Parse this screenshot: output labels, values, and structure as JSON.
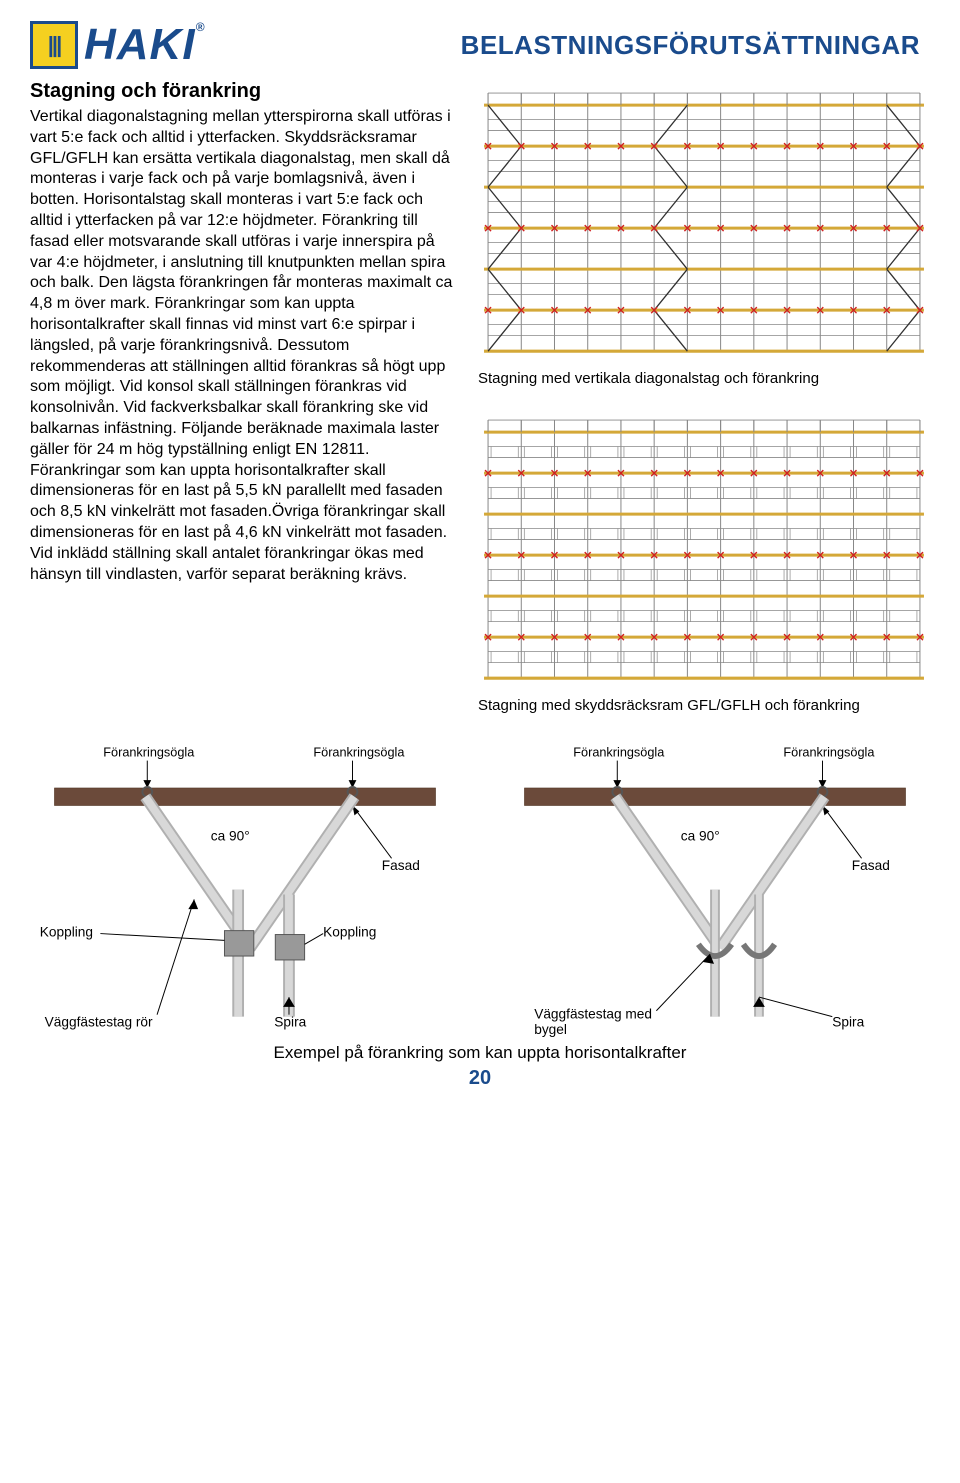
{
  "logo": {
    "brand": "HAKI",
    "mark": "|||"
  },
  "page_title": "BELASTNINGSFÖRUTSÄTTNINGAR",
  "section_heading": "Stagning och förankring",
  "body_paragraph": "Vertikal diagonalstagning mellan ytterspirorna skall utföras i vart 5:e fack och alltid i ytterfacken. Skyddsräcksramar GFL/GFLH kan ersätta vertikala diagonalstag, men skall då monteras i varje fack och på varje bomlagsnivå, även i botten. Horisontalstag skall monteras i vart 5:e fack och alltid i ytterfacken på var 12:e höjdmeter. Förankring till fasad eller motsvarande skall utföras i varje innerspira på var 4:e höjdmeter, i anslutning till knutpunkten mellan spira och balk. Den lägsta förankringen får monteras maximalt ca 4,8 m över mark. Förankringar som kan uppta horisontalkrafter skall finnas vid minst vart 6:e spirpar i längsled, på varje förankringsnivå. Dessutom rekommenderas att ställningen alltid förankras så högt upp som möjligt. Vid konsol skall ställningen förankras vid konsolnivån. Vid fackverksbalkar skall förankring ske vid balkarnas infästning. Följande beräknade maximala laster gäller för 24 m hög typställning enligt EN 12811. Förankringar som kan uppta horisontalkrafter skall dimensioneras för en last på 5,5 kN parallellt med fasaden och 8,5 kN vinkelrätt mot fasaden.Övriga förankringar skall dimensioneras för en last på 4,6 kN vinkelrätt mot fasaden. Vid inklädd ställning skall antalet förankringar ökas med hänsyn till vindlasten, varför separat beräkning krävs.",
  "diagram1": {
    "caption": "Stagning med vertikala diagonalstag och förankring",
    "rows": 6,
    "cols": 13,
    "color_grid": "#888888",
    "color_beam": "#d4a838",
    "color_anchor": "#d02020",
    "color_diag": "#303030",
    "color_rail": "#888888",
    "background": "#ffffff",
    "diag_bays": [
      0,
      5,
      12
    ],
    "anchor_rows": [
      1,
      3,
      5
    ]
  },
  "diagram2": {
    "caption": "Stagning med skyddsräcksram GFL/GFLH och förankring",
    "rows": 6,
    "cols": 13,
    "color_grid": "#888888",
    "color_beam": "#d4a838",
    "color_anchor": "#d02020",
    "color_rail": "#888888",
    "background": "#ffffff",
    "anchor_rows": [
      1,
      3,
      5
    ]
  },
  "anchor_labels": {
    "forankringsogla": "Förankringsögla",
    "ca90": "ca 90°",
    "fasad": "Fasad",
    "koppling": "Koppling",
    "vaggfastestag_ror": "Väggfästestag rör",
    "spira": "Spira",
    "vaggfastestag_bygel": "Väggfästestag med bygel"
  },
  "anchor_diagram": {
    "color_concrete": "#6b4a3a",
    "color_concrete_border": "#4a3020",
    "color_tube": "#b0b0b0",
    "color_tube_light": "#d8d8d8",
    "color_label": "#000000"
  },
  "bottom_caption": "Exempel på förankring som kan uppta horisontalkrafter",
  "page_number": "20"
}
